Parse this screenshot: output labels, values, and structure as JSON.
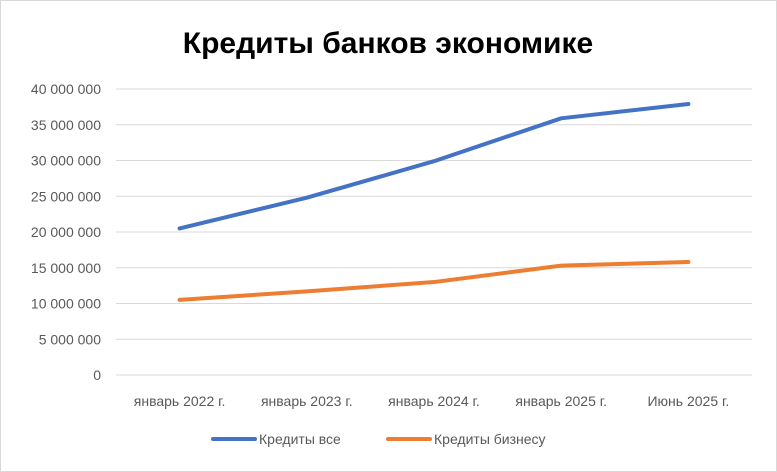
{
  "chart_data": {
    "type": "line",
    "title": "Кредиты банков экономике",
    "xlabel": "",
    "ylabel": "",
    "categories": [
      "январь 2022 г.",
      "январь 2023 г.",
      "январь 2024 г.",
      "январь 2025 г.",
      "Июнь 2025 г."
    ],
    "yticks": [
      "0",
      "5 000 000",
      "10 000 000",
      "15 000 000",
      "20 000 000",
      "25 000 000",
      "30 000 000",
      "35 000 000",
      "40 000 000"
    ],
    "ylim": [
      0,
      40000000
    ],
    "grid": true,
    "legend_position": "bottom",
    "series": [
      {
        "name": "Кредиты все",
        "color": "#4472c4",
        "values": [
          20500000,
          24800000,
          29900000,
          35900000,
          37900000
        ]
      },
      {
        "name": "Кредиты бизнесу",
        "color": "#ed7d31",
        "values": [
          10500000,
          11700000,
          13000000,
          15300000,
          15800000
        ]
      }
    ]
  }
}
